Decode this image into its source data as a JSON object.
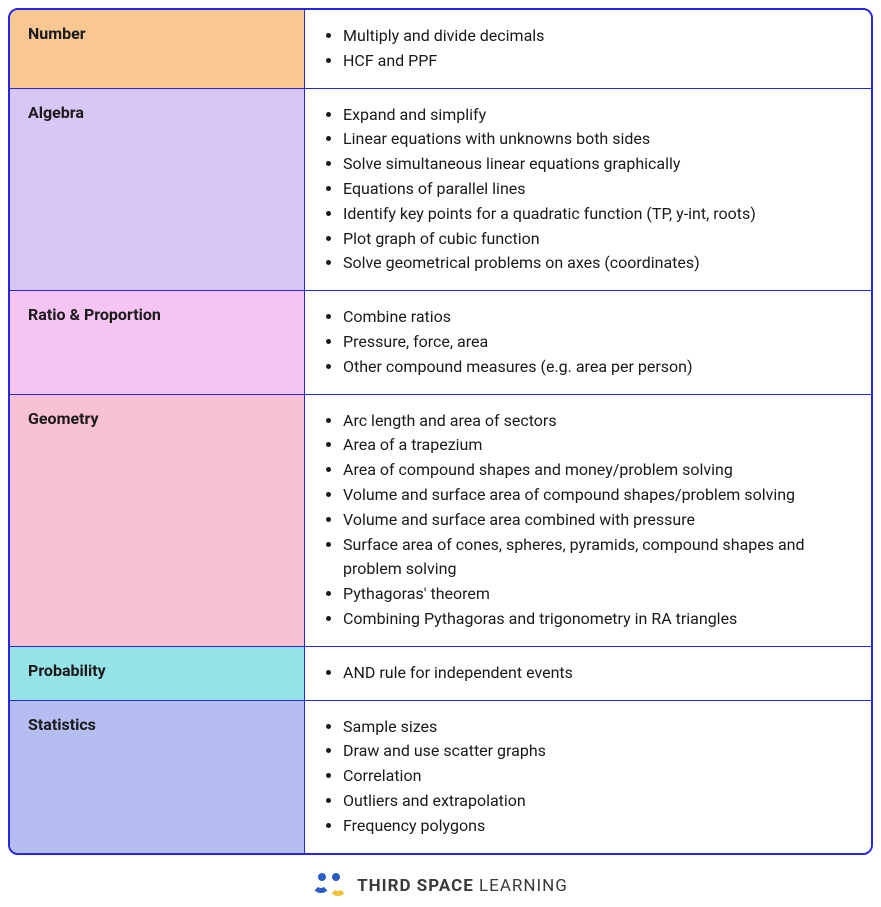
{
  "table": {
    "border_color": "#2626e6",
    "rows": [
      {
        "topic": "Number",
        "bg": "#f9c791",
        "items": [
          "Multiply and divide decimals",
          "HCF and PPF"
        ]
      },
      {
        "topic": "Algebra",
        "bg": "#d6c7f7",
        "items": [
          "Expand and simplify",
          "Linear equations with unknowns both sides",
          "Solve simultaneous linear equations graphically",
          "Equations of parallel lines",
          "Identify key points for a quadratic function (TP, y-int, roots)",
          "Plot graph of cubic function",
          "Solve geometrical problems on axes (coordinates)"
        ]
      },
      {
        "topic": "Ratio & Proportion",
        "bg": "#f5c4f3",
        "items": [
          "Combine ratios",
          "Pressure, force, area",
          "Other compound measures (e.g. area per person)"
        ]
      },
      {
        "topic": "Geometry",
        "bg": "#f8c1d3",
        "items": [
          "Arc length and area of sectors",
          "Area of a trapezium",
          "Area of compound shapes and money/problem solving",
          "Volume and surface area of compound shapes/problem solving",
          "Volume and surface area combined with pressure",
          "Surface area of cones, spheres, pyramids, compound shapes and problem solving",
          "Pythagoras' theorem",
          "Combining Pythagoras and trigonometry in RA triangles"
        ]
      },
      {
        "topic": "Probability",
        "bg": "#96e3e7",
        "items": [
          "AND rule for independent events"
        ]
      },
      {
        "topic": "Statistics",
        "bg": "#b6bdf0",
        "items": [
          "Sample sizes",
          "Draw and use scatter graphs",
          "Correlation",
          "Outliers and extrapolation",
          "Frequency polygons"
        ]
      }
    ]
  },
  "footer": {
    "brand_bold": "THIRD SPACE",
    "brand_light": " LEARNING",
    "colors": {
      "blue": "#2c5cc5",
      "yellow": "#f0c23b"
    }
  }
}
